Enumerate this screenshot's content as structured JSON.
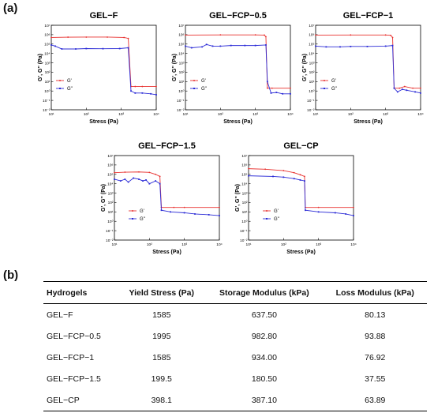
{
  "panel_labels": {
    "a": "(a)",
    "b": "(b)"
  },
  "chart_data": [
    {
      "type": "line",
      "title": "GEL−F",
      "xlabel": "Stress (Pa)",
      "ylabel": "G', G'' (Pa)",
      "x_scale": "log",
      "y_scale": "log",
      "xlim": [
        10,
        10000
      ],
      "ylim": [
        0.01,
        10000000
      ],
      "legend": "center-left",
      "series": [
        {
          "name": "G'",
          "color": "#e8312f",
          "points": [
            [
              10,
              500000
            ],
            [
              30,
              540000
            ],
            [
              100,
              550000
            ],
            [
              400,
              550000
            ],
            [
              1200,
              500000
            ],
            [
              1585,
              400000
            ],
            [
              1900,
              3
            ],
            [
              2500,
              3
            ],
            [
              4000,
              3
            ],
            [
              10000,
              3
            ]
          ]
        },
        {
          "name": "G''",
          "color": "#2b2bd6",
          "points": [
            [
              10,
              80000
            ],
            [
              13,
              60000
            ],
            [
              20,
              30000
            ],
            [
              50,
              30000
            ],
            [
              100,
              33000
            ],
            [
              300,
              32000
            ],
            [
              900,
              33000
            ],
            [
              1585,
              40000
            ],
            [
              1900,
              1
            ],
            [
              2500,
              0.6
            ],
            [
              4000,
              0.6
            ],
            [
              7000,
              0.5
            ],
            [
              10000,
              0.4
            ]
          ]
        }
      ]
    },
    {
      "type": "line",
      "title": "GEL−FCP−0.5",
      "xlabel": "Stress (Pa)",
      "ylabel": "G', G'' (Pa)",
      "x_scale": "log",
      "y_scale": "log",
      "xlim": [
        10,
        10000
      ],
      "ylim": [
        0.01,
        10000000
      ],
      "legend": "center-left",
      "series": [
        {
          "name": "G'",
          "color": "#e8312f",
          "points": [
            [
              10,
              900000
            ],
            [
              100,
              950000
            ],
            [
              1000,
              950000
            ],
            [
              1800,
              900000
            ],
            [
              1995,
              600000
            ],
            [
              2200,
              2
            ],
            [
              3000,
              2
            ],
            [
              10000,
              2
            ]
          ]
        },
        {
          "name": "G''",
          "color": "#2b2bd6",
          "points": [
            [
              10,
              60000
            ],
            [
              15,
              40000
            ],
            [
              30,
              50000
            ],
            [
              40,
              90000
            ],
            [
              60,
              60000
            ],
            [
              100,
              60000
            ],
            [
              200,
              70000
            ],
            [
              500,
              70000
            ],
            [
              1000,
              70000
            ],
            [
              1995,
              80000
            ],
            [
              2200,
              10
            ],
            [
              2800,
              0.6
            ],
            [
              4000,
              0.7
            ],
            [
              6000,
              0.5
            ],
            [
              10000,
              0.5
            ]
          ]
        }
      ]
    },
    {
      "type": "line",
      "title": "GEL−FCP−1",
      "xlabel": "Stress (Pa)",
      "ylabel": "G', G'' (Pa)",
      "x_scale": "log",
      "y_scale": "log",
      "xlim": [
        10,
        10000
      ],
      "ylim": [
        0.01,
        10000000
      ],
      "legend": "center-left",
      "series": [
        {
          "name": "G'",
          "color": "#e8312f",
          "points": [
            [
              10,
              900000
            ],
            [
              100,
              920000
            ],
            [
              1000,
              920000
            ],
            [
              1400,
              850000
            ],
            [
              1585,
              500000
            ],
            [
              1750,
              2
            ],
            [
              2500,
              2
            ],
            [
              3500,
              3
            ],
            [
              6000,
              2
            ],
            [
              10000,
              2
            ]
          ]
        },
        {
          "name": "G''",
          "color": "#2b2bd6",
          "points": [
            [
              10,
              60000
            ],
            [
              20,
              50000
            ],
            [
              50,
              50000
            ],
            [
              100,
              55000
            ],
            [
              300,
              55000
            ],
            [
              1000,
              60000
            ],
            [
              1585,
              70000
            ],
            [
              1750,
              2
            ],
            [
              2200,
              0.8
            ],
            [
              3000,
              1.5
            ],
            [
              4000,
              1.2
            ],
            [
              7000,
              0.8
            ],
            [
              10000,
              0.6
            ]
          ]
        }
      ]
    },
    {
      "type": "line",
      "title": "GEL−FCP−1.5",
      "xlabel": "Stress (Pa)",
      "ylabel": "G', G'' (Pa)",
      "x_scale": "log",
      "y_scale": "log",
      "xlim": [
        10,
        10000
      ],
      "ylim": [
        0.01,
        10000000
      ],
      "legend": "center-right",
      "series": [
        {
          "name": "G'",
          "color": "#e8312f",
          "points": [
            [
              10,
              150000
            ],
            [
              20,
              170000
            ],
            [
              50,
              180000
            ],
            [
              100,
              160000
            ],
            [
              150,
              100000
            ],
            [
              199.5,
              60000
            ],
            [
              220,
              30
            ],
            [
              500,
              30
            ],
            [
              1000,
              30
            ],
            [
              10000,
              30
            ]
          ]
        },
        {
          "name": "G''",
          "color": "#2b2bd6",
          "points": [
            [
              10,
              30000
            ],
            [
              15,
              20000
            ],
            [
              20,
              30000
            ],
            [
              25,
              15000
            ],
            [
              35,
              40000
            ],
            [
              50,
              30000
            ],
            [
              65,
              20000
            ],
            [
              80,
              25000
            ],
            [
              100,
              10000
            ],
            [
              150,
              20000
            ],
            [
              199.5,
              10000
            ],
            [
              220,
              15
            ],
            [
              400,
              10
            ],
            [
              1000,
              8
            ],
            [
              2000,
              6
            ],
            [
              5000,
              5
            ],
            [
              10000,
              4
            ]
          ]
        }
      ]
    },
    {
      "type": "line",
      "title": "GEL−CP",
      "xlabel": "Stress (Pa)",
      "ylabel": "G', G'' (Pa)",
      "x_scale": "log",
      "y_scale": "log",
      "xlim": [
        10,
        10000
      ],
      "ylim": [
        0.01,
        10000000
      ],
      "legend": "center-right",
      "series": [
        {
          "name": "G'",
          "color": "#e8312f",
          "points": [
            [
              10,
              400000
            ],
            [
              30,
              350000
            ],
            [
              100,
              250000
            ],
            [
              200,
              150000
            ],
            [
              300,
              90000
            ],
            [
              398.1,
              60000
            ],
            [
              420,
              30
            ],
            [
              1000,
              30
            ],
            [
              10000,
              30
            ]
          ]
        },
        {
          "name": "G''",
          "color": "#2b2bd6",
          "points": [
            [
              10,
              70000
            ],
            [
              50,
              60000
            ],
            [
              100,
              50000
            ],
            [
              200,
              35000
            ],
            [
              300,
              25000
            ],
            [
              398.1,
              20000
            ],
            [
              420,
              15
            ],
            [
              1000,
              10
            ],
            [
              3000,
              8
            ],
            [
              6000,
              6
            ],
            [
              10000,
              4
            ]
          ]
        }
      ]
    }
  ],
  "table": {
    "headers": [
      "Hydrogels",
      "Yield Stress (Pa)",
      "Storage Modulus (kPa)",
      "Loss Modulus (kPa)"
    ],
    "rows": [
      [
        "GEL−F",
        "1585",
        "637.50",
        "80.13"
      ],
      [
        "GEL−FCP−0.5",
        "1995",
        "982.80",
        "93.88"
      ],
      [
        "GEL−FCP−1",
        "1585",
        "934.00",
        "76.92"
      ],
      [
        "GEL−FCP−1.5",
        "199.5",
        "180.50",
        "37.55"
      ],
      [
        "GEL−CP",
        "398.1",
        "387.10",
        "63.89"
      ]
    ]
  }
}
